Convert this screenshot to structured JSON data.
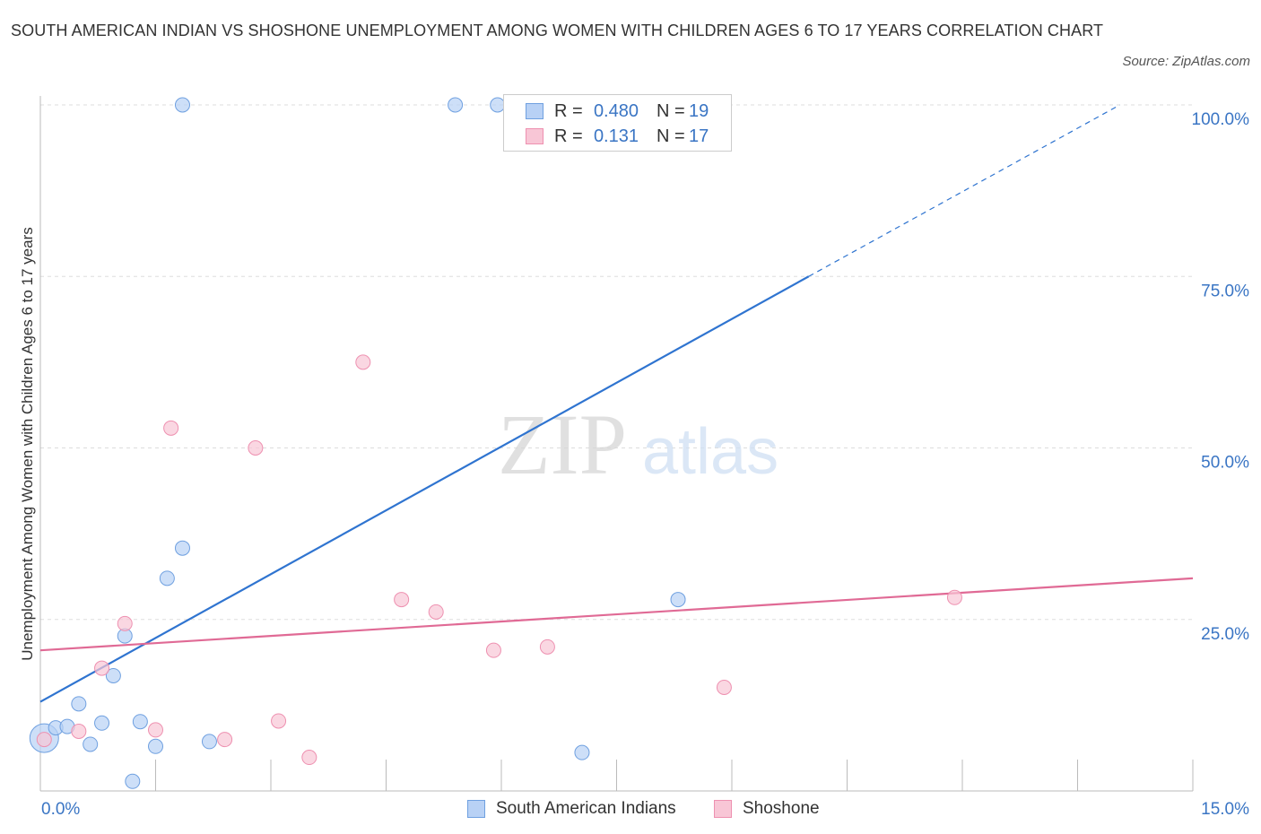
{
  "title": "SOUTH AMERICAN INDIAN VS SHOSHONE UNEMPLOYMENT AMONG WOMEN WITH CHILDREN AGES 6 TO 17 YEARS CORRELATION CHART",
  "source": "Source: ZipAtlas.com",
  "watermark": {
    "zip": "ZIP",
    "atlas": "atlas"
  },
  "legend": {
    "r_label": "R =",
    "n_label": "N =",
    "series1": {
      "r": "0.480",
      "n": "19"
    },
    "series2": {
      "r": "0.131",
      "n": "17"
    }
  },
  "chart_data": {
    "type": "scatter",
    "title": "SOUTH AMERICAN INDIAN VS SHOSHONE UNEMPLOYMENT AMONG WOMEN WITH CHILDREN AGES 6 TO 17 YEARS CORRELATION CHART",
    "xlabel": "",
    "ylabel": "Unemployment Among Women with Children Ages 6 to 17 years",
    "xlim": [
      0,
      15
    ],
    "ylim": [
      0,
      100
    ],
    "x_tick_labels": [
      "0.0%",
      "15.0%"
    ],
    "y_tick_labels": [
      "25.0%",
      "50.0%",
      "75.0%",
      "100.0%"
    ],
    "y_ticks": [
      25,
      50,
      75,
      100
    ],
    "grid": true,
    "legend_position": "bottom",
    "series": [
      {
        "name": "South American Indians",
        "color": "#6fa0e0",
        "fill": "#b8d1f5",
        "r": 0.48,
        "n": 19,
        "points": [
          [
            0.05,
            7.7
          ],
          [
            0.2,
            9.2
          ],
          [
            0.35,
            9.4
          ],
          [
            0.5,
            12.7
          ],
          [
            0.65,
            6.8
          ],
          [
            0.8,
            9.9
          ],
          [
            0.95,
            16.8
          ],
          [
            1.1,
            22.6
          ],
          [
            1.2,
            1.4
          ],
          [
            1.3,
            10.1
          ],
          [
            1.5,
            6.5
          ],
          [
            1.65,
            31.0
          ],
          [
            1.85,
            35.4
          ],
          [
            1.85,
            100
          ],
          [
            2.2,
            7.2
          ],
          [
            5.4,
            100
          ],
          [
            5.95,
            100
          ],
          [
            7.05,
            5.6
          ],
          [
            8.3,
            27.9
          ]
        ],
        "trend": {
          "x0": 0,
          "y0": 13.0,
          "x1": 10,
          "y1": 75.0,
          "dash_x1": 14.05,
          "dash_y1": 100.0
        }
      },
      {
        "name": "Shoshone",
        "color": "#ee90b0",
        "fill": "#f8c6d6",
        "r": 0.131,
        "n": 17,
        "points": [
          [
            0.05,
            7.5
          ],
          [
            0.5,
            8.7
          ],
          [
            0.8,
            17.9
          ],
          [
            1.1,
            24.4
          ],
          [
            1.5,
            8.9
          ],
          [
            1.7,
            52.9
          ],
          [
            2.4,
            7.5
          ],
          [
            2.8,
            50.0
          ],
          [
            3.1,
            10.2
          ],
          [
            3.5,
            4.9
          ],
          [
            4.2,
            62.5
          ],
          [
            4.7,
            27.9
          ],
          [
            5.15,
            26.1
          ],
          [
            5.9,
            20.5
          ],
          [
            6.6,
            21.0
          ],
          [
            8.9,
            15.1
          ],
          [
            11.9,
            28.2
          ]
        ],
        "trend": {
          "x0": 0,
          "y0": 20.5,
          "x1": 15,
          "y1": 31.0
        }
      }
    ]
  }
}
